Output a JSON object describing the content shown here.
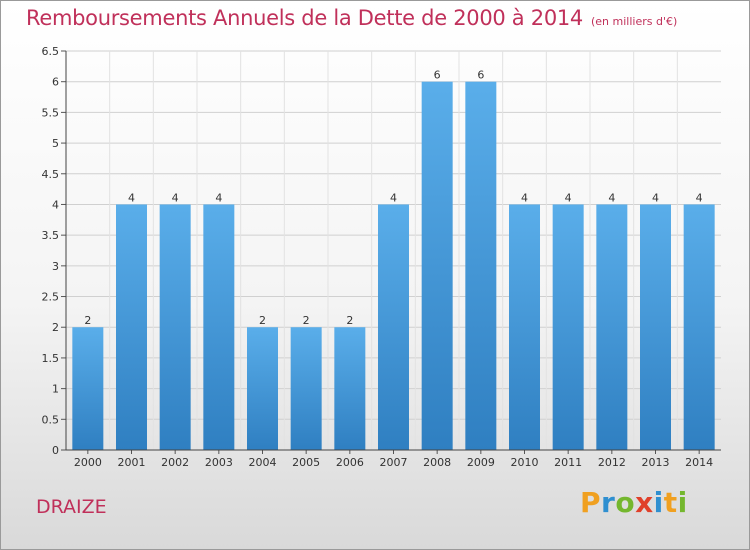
{
  "chart_data": {
    "type": "bar",
    "title": "Remboursements Annuels de la Dette de 2000 à 2014",
    "unit_label": "(en milliers d'€)",
    "categories": [
      "2000",
      "2001",
      "2002",
      "2003",
      "2004",
      "2005",
      "2006",
      "2007",
      "2008",
      "2009",
      "2010",
      "2011",
      "2012",
      "2013",
      "2014"
    ],
    "values": [
      2,
      4,
      4,
      4,
      2,
      2,
      2,
      4,
      6,
      6,
      4,
      4,
      4,
      4,
      4
    ],
    "ylim": [
      0,
      6.5
    ],
    "yticks": [
      "0",
      "0.5",
      "1",
      "1.5",
      "2",
      "2.5",
      "3",
      "3.5",
      "4",
      "4.5",
      "5",
      "5.5",
      "6",
      "6.5"
    ],
    "xlabel": "",
    "ylabel": "",
    "grid": true,
    "bar_color_top": "#5aaeea",
    "bar_color_bottom": "#2f7fc1"
  },
  "commune": "DRAIZE",
  "logo": {
    "letters": [
      "P",
      "r",
      "o",
      "x",
      "i",
      "t",
      "i"
    ],
    "colors": [
      "#f0a020",
      "#2f8fd0",
      "#74b72e",
      "#e0402a",
      "#2f8fd0",
      "#f0a020",
      "#74b72e"
    ]
  }
}
